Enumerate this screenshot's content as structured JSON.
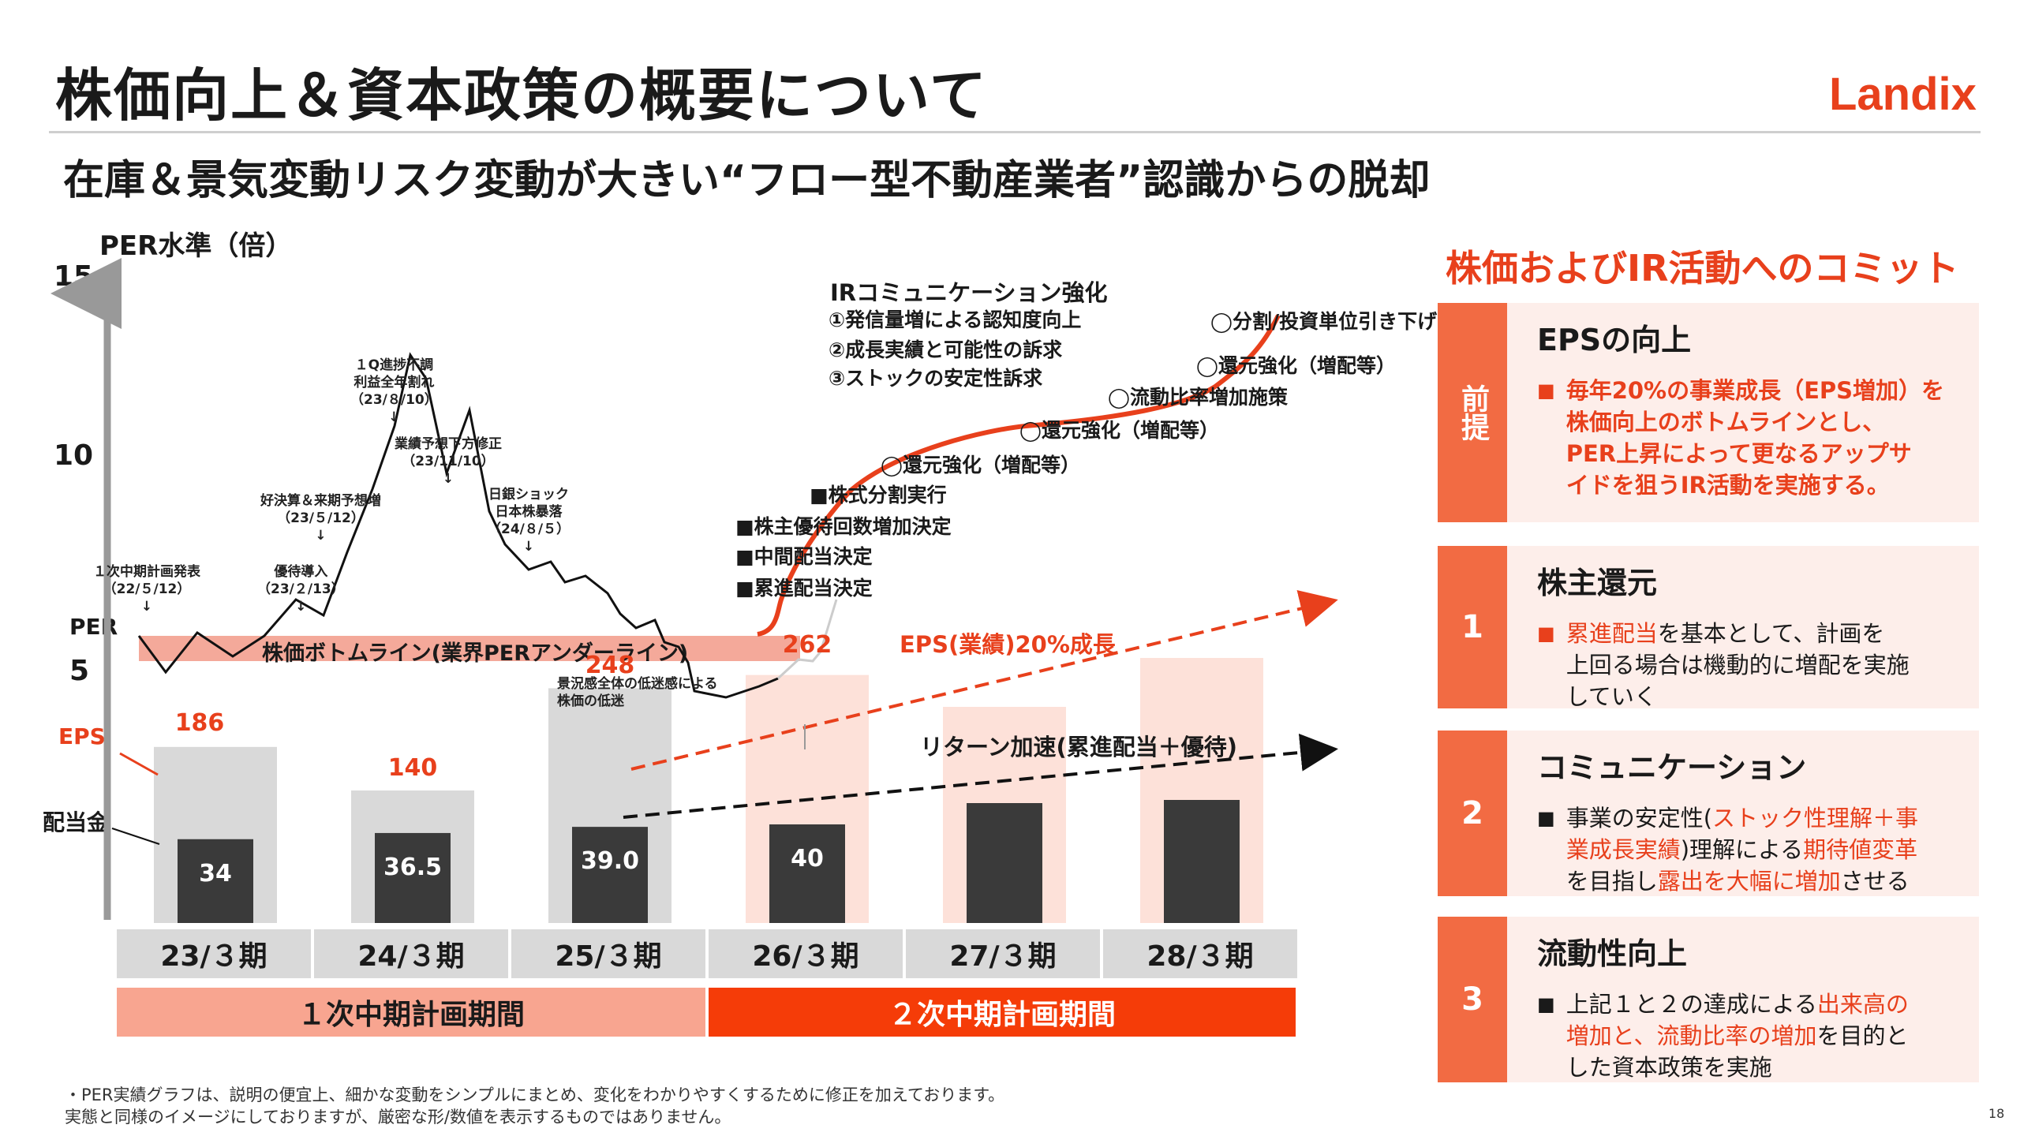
{
  "title": "株価向上＆資本政策の概要について",
  "subtitle": "在庫＆景気変動リスク変動が大きい“フロー型不動産業者”認識からの脱却",
  "logo": "Landix",
  "page_number": "18",
  "footnote": [
    "・PER実績グラフは、説明の便宜上、細かな変動をシンプルにまとめ、変化をわかりやすくするために修正を加えております。",
    "実態と同様のイメージにしておりますが、厳密な形/数値を表示するものではありません。"
  ],
  "chart_data": {
    "type": "bar",
    "y_axis_title": "PER水準（倍）",
    "y_ticks": [
      "15",
      "10",
      "5"
    ],
    "labels": {
      "per": "PER",
      "eps": "EPS",
      "dividend": "配当金"
    },
    "categories": [
      "23/３期",
      "24/３期",
      "25/３期",
      "26/３期",
      "27/３期",
      "28/３期"
    ],
    "series": [
      {
        "name": "EPS",
        "values": [
          186,
          140,
          248,
          262,
          null,
          null
        ],
        "labels": [
          "186",
          "140",
          "248",
          "262",
          "",
          ""
        ]
      },
      {
        "name": "配当金",
        "values": [
          34,
          36.5,
          39.0,
          40,
          null,
          null
        ],
        "labels": [
          "34",
          "36.5",
          "39.0",
          "40",
          "",
          ""
        ]
      }
    ],
    "periods": [
      {
        "label": "１次中期計画期間"
      },
      {
        "label": "２次中期計画期間"
      }
    ],
    "bottom_line": "株価ボトムライン(業界PERアンダーライン)",
    "eps_growth": "EPS(業績)20%成長",
    "return_accel": "リターン加速(累進配当＋優待)",
    "per_annotations": [
      "１次中期計画発表\n（22/５/12）\n↓",
      "優待導入\n（23/２/13）\n↓",
      "好決算＆来期予想増\n（23/５/12）\n↓",
      "１Q進捗不調\n利益全年割れ\n（23/８/10）\n↓",
      "業績予想下方修正\n（23/11/10）\n↓",
      "日銀ショック\n日本株暴落\n（24/８/５）\n↓",
      "景況感全体の低迷感による\n株価の低迷"
    ],
    "actions": [
      "■株式分割実行",
      "■株主優待回数増加決定",
      "■中間配当決定",
      "■累進配当決定"
    ],
    "plans": [
      "◯還元強化（増配等）",
      "◯還元強化（増配等）",
      "◯流動比率増加施策",
      "◯還元強化（増配等）",
      "◯分割/投資単位引き下げ"
    ],
    "ir_title": "IRコミュニケーション強化",
    "ir_items": [
      "①発信量増による認知度向上",
      "②成長実績と可能性の訴求",
      "③ストックの安定性訴求"
    ]
  },
  "right_panel": {
    "heading": "株価およびIR活動へのコミット",
    "boxes": [
      {
        "tab": "前提",
        "title": "EPSの向上",
        "bullet": "■",
        "text": "毎年20%の事業成長（EPS増加）を\n株価向上のボトムラインとし、\nPER上昇によって更なるアップサ\nイドを狙うIR活動を実施する。"
      },
      {
        "tab": "1",
        "title": "株主還元",
        "bullet": "■",
        "text_a": "累進配当",
        "text_b": "を基本として、計画を\n上回る場合は機動的に増配を実施\nしていく"
      },
      {
        "tab": "2",
        "title": "コミュニケーション",
        "bullet": "■",
        "parts": [
          "事業の安定性(",
          "ストック性理解＋事\n業成長実績",
          ")理解による",
          "期待値変革",
          "\nを目指し",
          "露出を大幅に増加",
          "させる"
        ]
      },
      {
        "tab": "3",
        "title": "流動性向上",
        "bullet": "■",
        "parts": [
          "上記１と２の達成による",
          "出来高の\n増加と、流動比率の増加",
          "を目的と\nした資本政策を実施"
        ]
      }
    ]
  },
  "colors": {
    "accent": "#e8401c",
    "orange": "#f26b43",
    "pink": "#fdeeea",
    "gray": "#d9d9d9",
    "dark": "#3a3a3a",
    "bottomline": "#f4a99a"
  }
}
